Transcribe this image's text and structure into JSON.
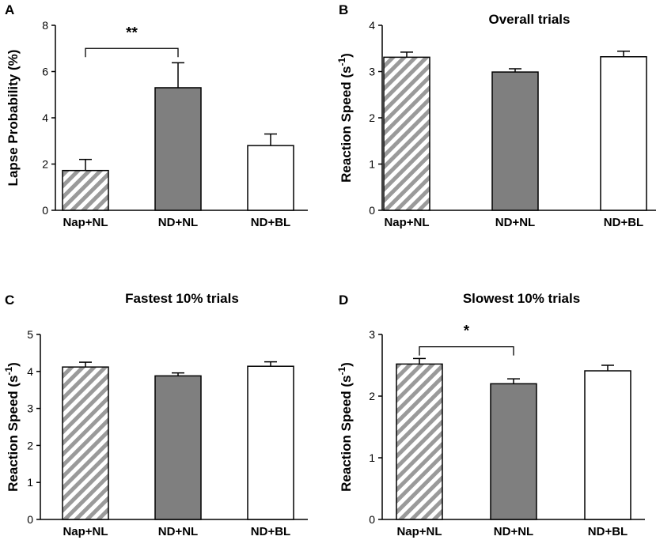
{
  "figure": {
    "colors": {
      "hatch": "#9a9a9a",
      "solid": "#7f7f7f",
      "open": "#ffffff",
      "line": "#000000"
    }
  },
  "chart_data": [
    {
      "type": "bar",
      "panel_label": "A",
      "title": "",
      "categories": [
        "Nap+NL",
        "ND+NL",
        "ND+BL"
      ],
      "fills": [
        "hatch",
        "solid",
        "open"
      ],
      "values": [
        1.72,
        5.3,
        2.8
      ],
      "errors": [
        0.48,
        1.08,
        0.5
      ],
      "ylabel": "Lapse Probability (%)",
      "ylim": [
        0,
        8
      ],
      "yticks": [
        "0",
        "2",
        "4",
        "6",
        "8"
      ],
      "significance": {
        "from": 0,
        "to": 1,
        "label": "**"
      }
    },
    {
      "type": "bar",
      "panel_label": "B",
      "title": "Overall trials",
      "categories": [
        "Nap+NL",
        "ND+NL",
        "ND+BL"
      ],
      "fills": [
        "hatch",
        "solid",
        "open"
      ],
      "values": [
        3.31,
        2.99,
        3.32
      ],
      "errors": [
        0.11,
        0.07,
        0.12
      ],
      "ylabel": "Reaction Speed (s",
      "ylabel_sup": "-1",
      "ylabel_end": ")",
      "ylim": [
        0,
        4
      ],
      "yticks": [
        "0",
        "1",
        "2",
        "3",
        "4"
      ]
    },
    {
      "type": "bar",
      "panel_label": "C",
      "title": "Fastest 10% trials",
      "categories": [
        "Nap+NL",
        "ND+NL",
        "ND+BL"
      ],
      "fills": [
        "hatch",
        "solid",
        "open"
      ],
      "values": [
        4.12,
        3.88,
        4.14
      ],
      "errors": [
        0.13,
        0.08,
        0.12
      ],
      "ylabel": "Reaction Speed (s",
      "ylabel_sup": "-1",
      "ylabel_end": ")",
      "ylim": [
        0,
        5
      ],
      "yticks": [
        "0",
        "1",
        "2",
        "3",
        "4",
        "5"
      ]
    },
    {
      "type": "bar",
      "panel_label": "D",
      "title": "Slowest 10% trials",
      "categories": [
        "Nap+NL",
        "ND+NL",
        "ND+BL"
      ],
      "fills": [
        "hatch",
        "solid",
        "open"
      ],
      "values": [
        2.52,
        2.2,
        2.41
      ],
      "errors": [
        0.09,
        0.08,
        0.09
      ],
      "ylabel": "Reaction Speed (s",
      "ylabel_sup": "-1",
      "ylabel_end": ")",
      "ylim": [
        0,
        3
      ],
      "yticks": [
        "0",
        "1",
        "2",
        "3"
      ],
      "significance": {
        "from": 0,
        "to": 1,
        "label": "*"
      }
    }
  ]
}
